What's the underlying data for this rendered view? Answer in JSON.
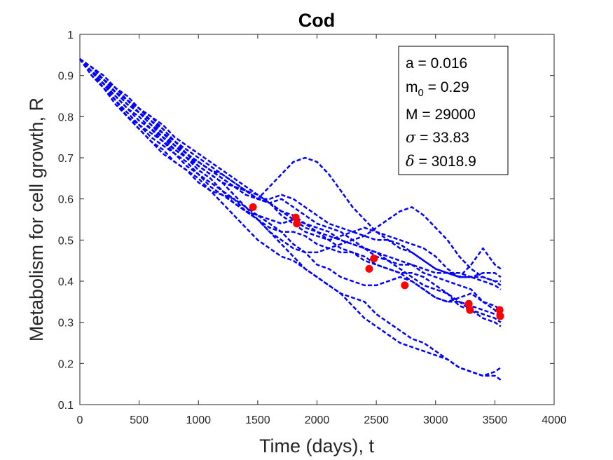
{
  "chart_data": {
    "type": "scatter",
    "title": "Cod",
    "xlabel": "Time (days), t",
    "ylabel": "Metabolism for cell growth, R",
    "xlim": [
      0,
      4000
    ],
    "ylim": [
      0.1,
      1
    ],
    "xticks": [
      "0",
      "500",
      "1000",
      "1500",
      "2000",
      "2500",
      "3000",
      "3500",
      "4000"
    ],
    "yticks": [
      "0.1",
      "0.2",
      "0.3",
      "0.4",
      "0.5",
      "0.6",
      "0.7",
      "0.8",
      "0.9",
      "1"
    ],
    "grid": false,
    "colors": {
      "simulation": "#0000ff",
      "observed": "#ff0000",
      "axes": "#262626"
    },
    "parameters_box": {
      "placement": "top-right",
      "lines": [
        {
          "name": "a",
          "value": "0.016"
        },
        {
          "name": "m0",
          "value": "0.29"
        },
        {
          "name": "M",
          "value": "29000"
        },
        {
          "name": "sigma",
          "value": "33.83"
        },
        {
          "name": "delta",
          "value": "3018.9"
        }
      ]
    },
    "series": [
      {
        "style": "dashed",
        "x": [
          0,
          100,
          200,
          300,
          400,
          500,
          600,
          700,
          800,
          900,
          1000,
          1100,
          1200,
          1300,
          1400,
          1500,
          1600,
          1700,
          1800,
          1900,
          2000,
          2100,
          2200,
          2300,
          2400,
          2500,
          2600,
          2700,
          2800,
          2900,
          3000,
          3100,
          3200,
          3300,
          3400,
          3500,
          3550
        ],
        "y": [
          0.94,
          0.92,
          0.89,
          0.86,
          0.84,
          0.81,
          0.79,
          0.76,
          0.73,
          0.71,
          0.68,
          0.66,
          0.64,
          0.61,
          0.58,
          0.56,
          0.55,
          0.54,
          0.55,
          0.53,
          0.52,
          0.51,
          0.5,
          0.49,
          0.48,
          0.46,
          0.45,
          0.44,
          0.44,
          0.42,
          0.41,
          0.4,
          0.39,
          0.38,
          0.35,
          0.33,
          0.31
        ]
      },
      {
        "style": "dashed",
        "x": [
          0,
          100,
          200,
          300,
          400,
          500,
          600,
          700,
          800,
          900,
          1000,
          1100,
          1200,
          1300,
          1400,
          1500,
          1600,
          1700,
          1800,
          1900,
          2000,
          2100,
          2200,
          2300,
          2400,
          2500,
          2600,
          2700,
          2800,
          2900,
          3000,
          3100,
          3200,
          3300,
          3400,
          3500,
          3550
        ],
        "y": [
          0.94,
          0.91,
          0.88,
          0.85,
          0.82,
          0.79,
          0.77,
          0.75,
          0.72,
          0.7,
          0.69,
          0.67,
          0.66,
          0.64,
          0.62,
          0.6,
          0.59,
          0.6,
          0.58,
          0.56,
          0.54,
          0.53,
          0.52,
          0.5,
          0.48,
          0.47,
          0.45,
          0.43,
          0.41,
          0.39,
          0.38,
          0.37,
          0.35,
          0.33,
          0.32,
          0.31,
          0.3
        ]
      },
      {
        "style": "dashed",
        "x": [
          0,
          100,
          200,
          300,
          400,
          500,
          600,
          700,
          800,
          900,
          1000,
          1100,
          1200,
          1300,
          1400,
          1500,
          1600,
          1700,
          1800,
          1900,
          2000,
          2100,
          2200,
          2300,
          2400,
          2500,
          2600,
          2700,
          2800,
          2900,
          3000,
          3100,
          3200,
          3300,
          3400,
          3500,
          3550
        ],
        "y": [
          0.94,
          0.91,
          0.87,
          0.84,
          0.8,
          0.77,
          0.74,
          0.71,
          0.69,
          0.67,
          0.65,
          0.62,
          0.59,
          0.56,
          0.53,
          0.5,
          0.48,
          0.46,
          0.45,
          0.43,
          0.41,
          0.39,
          0.37,
          0.34,
          0.31,
          0.29,
          0.27,
          0.25,
          0.24,
          0.23,
          0.22,
          0.21,
          0.19,
          0.18,
          0.17,
          0.18,
          0.19
        ]
      },
      {
        "style": "dashed",
        "x": [
          0,
          100,
          200,
          300,
          400,
          500,
          600,
          700,
          800,
          900,
          1000,
          1100,
          1200,
          1300,
          1400,
          1500,
          1600,
          1700,
          1800,
          1900,
          2000,
          2100,
          2200,
          2300,
          2400,
          2500,
          2600,
          2700,
          2800,
          2900,
          3000,
          3100,
          3200,
          3300,
          3400,
          3500,
          3550
        ],
        "y": [
          0.94,
          0.9,
          0.87,
          0.83,
          0.8,
          0.77,
          0.74,
          0.72,
          0.69,
          0.67,
          0.64,
          0.62,
          0.61,
          0.6,
          0.58,
          0.55,
          0.52,
          0.49,
          0.46,
          0.43,
          0.41,
          0.39,
          0.37,
          0.36,
          0.35,
          0.32,
          0.3,
          0.28,
          0.26,
          0.25,
          0.23,
          0.21,
          0.19,
          0.18,
          0.17,
          0.17,
          0.16
        ]
      },
      {
        "style": "dashed",
        "x": [
          0,
          100,
          200,
          300,
          400,
          500,
          600,
          700,
          800,
          900,
          1000,
          1100,
          1200,
          1300,
          1400,
          1500,
          1600,
          1700,
          1800,
          1900,
          2000,
          2100,
          2200,
          2300,
          2400,
          2500,
          2600,
          2700,
          2800,
          2900,
          3000,
          3100,
          3200,
          3300,
          3400,
          3500,
          3550
        ],
        "y": [
          0.94,
          0.91,
          0.88,
          0.86,
          0.83,
          0.81,
          0.78,
          0.75,
          0.73,
          0.7,
          0.68,
          0.66,
          0.64,
          0.63,
          0.62,
          0.6,
          0.63,
          0.66,
          0.69,
          0.7,
          0.69,
          0.66,
          0.62,
          0.58,
          0.55,
          0.52,
          0.5,
          0.48,
          0.47,
          0.45,
          0.43,
          0.42,
          0.41,
          0.41,
          0.4,
          0.39,
          0.38
        ]
      },
      {
        "style": "dashed",
        "x": [
          0,
          100,
          200,
          300,
          400,
          500,
          600,
          700,
          800,
          900,
          1000,
          1100,
          1200,
          1300,
          1400,
          1500,
          1600,
          1700,
          1800,
          1900,
          2000,
          2100,
          2200,
          2300,
          2400,
          2500,
          2600,
          2700,
          2800,
          2900,
          3000,
          3100,
          3200,
          3300,
          3400,
          3500,
          3550
        ],
        "y": [
          0.94,
          0.92,
          0.89,
          0.87,
          0.85,
          0.82,
          0.79,
          0.77,
          0.74,
          0.71,
          0.69,
          0.67,
          0.65,
          0.63,
          0.61,
          0.6,
          0.6,
          0.61,
          0.6,
          0.58,
          0.56,
          0.54,
          0.53,
          0.52,
          0.51,
          0.5,
          0.5,
          0.49,
          0.47,
          0.45,
          0.43,
          0.42,
          0.41,
          0.41,
          0.42,
          0.42,
          0.41
        ]
      },
      {
        "style": "dashed",
        "x": [
          0,
          100,
          200,
          300,
          400,
          500,
          600,
          700,
          800,
          900,
          1000,
          1100,
          1200,
          1300,
          1400,
          1500,
          1600,
          1700,
          1800,
          1900,
          2000,
          2100,
          2200,
          2300,
          2400,
          2500,
          2600,
          2700,
          2800,
          2900,
          3000,
          3100,
          3200,
          3300,
          3400,
          3500,
          3550
        ],
        "y": [
          0.94,
          0.91,
          0.88,
          0.85,
          0.82,
          0.8,
          0.77,
          0.74,
          0.72,
          0.7,
          0.67,
          0.65,
          0.62,
          0.6,
          0.57,
          0.55,
          0.53,
          0.52,
          0.52,
          0.51,
          0.49,
          0.48,
          0.47,
          0.47,
          0.45,
          0.44,
          0.43,
          0.42,
          0.42,
          0.41,
          0.39,
          0.37,
          0.34,
          0.33,
          0.31,
          0.3,
          0.29
        ]
      },
      {
        "style": "dashed",
        "x": [
          0,
          100,
          200,
          300,
          400,
          500,
          600,
          700,
          800,
          900,
          1000,
          1100,
          1200,
          1300,
          1400,
          1500,
          1600,
          1700,
          1800,
          1900,
          2000,
          2100,
          2200,
          2300,
          2400,
          2500,
          2600,
          2700,
          2800,
          2900,
          3000,
          3100,
          3200,
          3300,
          3400,
          3500,
          3550
        ],
        "y": [
          0.94,
          0.91,
          0.88,
          0.84,
          0.81,
          0.78,
          0.76,
          0.74,
          0.71,
          0.69,
          0.66,
          0.63,
          0.61,
          0.59,
          0.57,
          0.56,
          0.54,
          0.52,
          0.49,
          0.47,
          0.44,
          0.43,
          0.41,
          0.4,
          0.39,
          0.39,
          0.4,
          0.41,
          0.4,
          0.38,
          0.36,
          0.35,
          0.35,
          0.34,
          0.33,
          0.32,
          0.32
        ]
      },
      {
        "style": "dashed",
        "x": [
          0,
          100,
          200,
          300,
          400,
          500,
          600,
          700,
          800,
          900,
          1000,
          1100,
          1200,
          1300,
          1400,
          1500,
          1600,
          1700,
          1800,
          1900,
          2000,
          2100,
          2200,
          2300,
          2400,
          2500,
          2600,
          2700,
          2800,
          2900,
          3000,
          3100,
          3200,
          3300,
          3400,
          3500,
          3550
        ],
        "y": [
          0.94,
          0.92,
          0.89,
          0.87,
          0.84,
          0.82,
          0.8,
          0.78,
          0.75,
          0.73,
          0.71,
          0.69,
          0.67,
          0.65,
          0.63,
          0.61,
          0.59,
          0.56,
          0.54,
          0.52,
          0.51,
          0.5,
          0.51,
          0.52,
          0.53,
          0.52,
          0.51,
          0.5,
          0.49,
          0.48,
          0.46,
          0.43,
          0.41,
          0.44,
          0.48,
          0.44,
          0.43
        ]
      },
      {
        "style": "dashed",
        "x": [
          0,
          100,
          200,
          300,
          400,
          500,
          600,
          700,
          800,
          900,
          1000,
          1100,
          1200,
          1300,
          1400,
          1500,
          1600,
          1700,
          1800,
          1900,
          2000,
          2100,
          2200,
          2300,
          2400,
          2500,
          2600,
          2700,
          2800,
          2900,
          3000,
          3100,
          3200,
          3300,
          3400,
          3500,
          3550
        ],
        "y": [
          0.94,
          0.9,
          0.87,
          0.84,
          0.8,
          0.78,
          0.75,
          0.73,
          0.71,
          0.68,
          0.66,
          0.64,
          0.62,
          0.59,
          0.57,
          0.55,
          0.52,
          0.5,
          0.48,
          0.47,
          0.47,
          0.48,
          0.49,
          0.5,
          0.51,
          0.53,
          0.55,
          0.57,
          0.58,
          0.56,
          0.53,
          0.5,
          0.46,
          0.43,
          0.41,
          0.4,
          0.4
        ]
      },
      {
        "style": "dashed",
        "x": [
          0,
          100,
          200,
          300,
          400,
          500,
          600,
          700,
          800,
          900,
          1000,
          1100,
          1200,
          1300,
          1400,
          1500,
          1600,
          1700,
          1800,
          1900,
          2000,
          2100,
          2200,
          2300,
          2400,
          2500,
          2600,
          2700,
          2800,
          2900,
          3000,
          3100,
          3200,
          3300,
          3400,
          3500,
          3550
        ],
        "y": [
          0.94,
          0.91,
          0.89,
          0.86,
          0.83,
          0.81,
          0.78,
          0.76,
          0.74,
          0.71,
          0.69,
          0.67,
          0.65,
          0.63,
          0.62,
          0.6,
          0.59,
          0.57,
          0.55,
          0.54,
          0.52,
          0.5,
          0.48,
          0.47,
          0.46,
          0.44,
          0.43,
          0.42,
          0.4,
          0.38,
          0.36,
          0.35,
          0.36,
          0.37,
          0.35,
          0.34,
          0.33
        ]
      },
      {
        "style": "dashed",
        "x": [
          0,
          100,
          200,
          300,
          400,
          500,
          600,
          700,
          800,
          900,
          1000,
          1100,
          1200,
          1300,
          1400,
          1500,
          1600,
          1700,
          1800,
          1900,
          2000,
          2100,
          2200,
          2300,
          2400,
          2500,
          2600,
          2700,
          2800,
          2900,
          3000,
          3100,
          3200,
          3300,
          3400,
          3500,
          3550
        ],
        "y": [
          0.94,
          0.92,
          0.9,
          0.87,
          0.84,
          0.82,
          0.8,
          0.77,
          0.74,
          0.72,
          0.7,
          0.68,
          0.66,
          0.64,
          0.62,
          0.61,
          0.59,
          0.57,
          0.56,
          0.54,
          0.53,
          0.52,
          0.5,
          0.49,
          0.48,
          0.47,
          0.46,
          0.45,
          0.44,
          0.43,
          0.42,
          0.42,
          0.42,
          0.41,
          0.41,
          0.4,
          0.39
        ]
      }
    ],
    "observed_points": [
      {
        "x": 1460,
        "y": 0.58
      },
      {
        "x": 1820,
        "y": 0.555
      },
      {
        "x": 1830,
        "y": 0.54
      },
      {
        "x": 2440,
        "y": 0.43
      },
      {
        "x": 2480,
        "y": 0.455
      },
      {
        "x": 2740,
        "y": 0.39
      },
      {
        "x": 3280,
        "y": 0.345
      },
      {
        "x": 3290,
        "y": 0.33
      },
      {
        "x": 3540,
        "y": 0.33
      },
      {
        "x": 3545,
        "y": 0.315
      }
    ]
  }
}
